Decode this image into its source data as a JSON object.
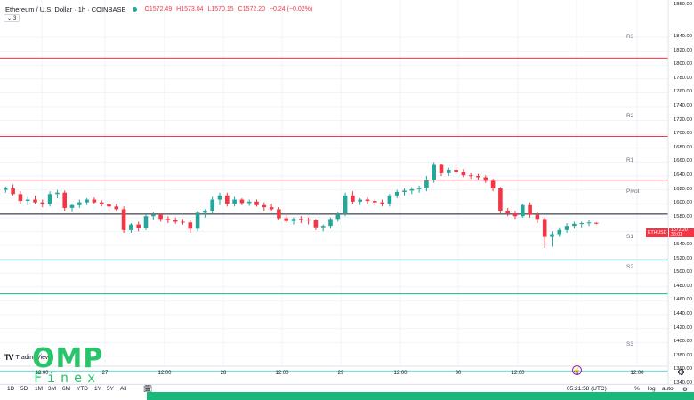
{
  "header": {
    "title": "Ethereum / U.S. Dollar · 1h · COINBASE",
    "ohlc": {
      "open": "O1572.49",
      "high": "H1573.04",
      "low": "L1570.15",
      "close": "C1572.20",
      "change": "−0.24 (−0.02%)"
    },
    "indicator_toggle_icon": "chevron-down-icon",
    "indicator_count": "3"
  },
  "levels": {
    "r3": {
      "label": "R3",
      "price": 1810
    },
    "r2": {
      "label": "R2",
      "price": 1697
    },
    "r1": {
      "label": "R1",
      "price": 1634
    },
    "pivot": {
      "label": "Pivot",
      "price": 1585
    },
    "s1": {
      "label": "S1",
      "price": 1519
    },
    "s2": {
      "label": "S2",
      "price": 1470
    },
    "s3": {
      "label": "S3",
      "price": 1358
    }
  },
  "price_axis": {
    "labels": [
      "1850.00",
      "1840.00",
      "1820.00",
      "1800.00",
      "1780.00",
      "1760.00",
      "1740.00",
      "1720.00",
      "1700.00",
      "1680.00",
      "1660.00",
      "1640.00",
      "1620.00",
      "1600.00",
      "1580.00",
      "1560.00",
      "1540.00",
      "1520.00",
      "1500.00",
      "1480.00",
      "1460.00",
      "1440.00",
      "1420.00",
      "1400.00",
      "1380.00",
      "1360.00",
      "1340.00"
    ],
    "last_price_tag": {
      "price": "1572.20",
      "countdown": "38:01"
    },
    "symbol_tag": "ETHUSD"
  },
  "time_axis": {
    "labels": [
      "12:00",
      "27",
      "12:00",
      "28",
      "12:00",
      "29",
      "12:00",
      "30",
      "12:00",
      "31",
      "12:00"
    ]
  },
  "branding": {
    "tradingview_mark": "TV",
    "tradingview_text": "TradingView",
    "omp_big": "OMP",
    "omp_small": "Finex"
  },
  "bottom_toolbar": {
    "ranges": [
      "1D",
      "5D",
      "1M",
      "3M",
      "6M",
      "YTD",
      "1Y",
      "5Y",
      "All"
    ],
    "calendar_icon": "calendar-icon",
    "clock": "05:21:58 (UTC)",
    "percent": "%",
    "log": "log",
    "auto": "auto",
    "settings_icon": "gear-icon"
  },
  "colors": {
    "up": "#26a69a",
    "down": "#f23645",
    "resistance": "#f23645",
    "support": "#22ab94",
    "pivot": "#131722",
    "grid": "#f0f3fa",
    "brand_green": "#29c46a"
  },
  "chart_data": {
    "type": "candlestick",
    "symbol": "ETHUSD",
    "interval": "1h",
    "ylim": [
      1340,
      1860
    ],
    "pivot_levels": {
      "R3": 1810,
      "R2": 1697,
      "R1": 1634,
      "Pivot": 1585,
      "S1": 1519,
      "S2": 1470,
      "S3": 1358
    },
    "candles": [
      {
        "o": 1620,
        "h": 1625,
        "l": 1616,
        "c": 1622
      },
      {
        "o": 1622,
        "h": 1628,
        "l": 1612,
        "c": 1614
      },
      {
        "o": 1614,
        "h": 1618,
        "l": 1600,
        "c": 1604
      },
      {
        "o": 1604,
        "h": 1610,
        "l": 1598,
        "c": 1606
      },
      {
        "o": 1606,
        "h": 1612,
        "l": 1600,
        "c": 1602
      },
      {
        "o": 1602,
        "h": 1606,
        "l": 1595,
        "c": 1600
      },
      {
        "o": 1600,
        "h": 1618,
        "l": 1596,
        "c": 1614
      },
      {
        "o": 1614,
        "h": 1620,
        "l": 1608,
        "c": 1616
      },
      {
        "o": 1616,
        "h": 1619,
        "l": 1590,
        "c": 1594
      },
      {
        "o": 1594,
        "h": 1600,
        "l": 1589,
        "c": 1598
      },
      {
        "o": 1598,
        "h": 1606,
        "l": 1594,
        "c": 1602
      },
      {
        "o": 1602,
        "h": 1608,
        "l": 1598,
        "c": 1606
      },
      {
        "o": 1606,
        "h": 1609,
        "l": 1600,
        "c": 1602
      },
      {
        "o": 1602,
        "h": 1605,
        "l": 1596,
        "c": 1599
      },
      {
        "o": 1599,
        "h": 1601,
        "l": 1590,
        "c": 1596
      },
      {
        "o": 1596,
        "h": 1600,
        "l": 1590,
        "c": 1592
      },
      {
        "o": 1592,
        "h": 1596,
        "l": 1558,
        "c": 1562
      },
      {
        "o": 1562,
        "h": 1572,
        "l": 1558,
        "c": 1570
      },
      {
        "o": 1570,
        "h": 1574,
        "l": 1560,
        "c": 1565
      },
      {
        "o": 1565,
        "h": 1584,
        "l": 1562,
        "c": 1582
      },
      {
        "o": 1582,
        "h": 1588,
        "l": 1576,
        "c": 1584
      },
      {
        "o": 1584,
        "h": 1586,
        "l": 1574,
        "c": 1578
      },
      {
        "o": 1578,
        "h": 1582,
        "l": 1572,
        "c": 1576
      },
      {
        "o": 1576,
        "h": 1580,
        "l": 1571,
        "c": 1574
      },
      {
        "o": 1574,
        "h": 1578,
        "l": 1570,
        "c": 1573
      },
      {
        "o": 1573,
        "h": 1576,
        "l": 1558,
        "c": 1564
      },
      {
        "o": 1564,
        "h": 1590,
        "l": 1560,
        "c": 1587
      },
      {
        "o": 1587,
        "h": 1592,
        "l": 1580,
        "c": 1590
      },
      {
        "o": 1590,
        "h": 1610,
        "l": 1586,
        "c": 1606
      },
      {
        "o": 1606,
        "h": 1616,
        "l": 1598,
        "c": 1612
      },
      {
        "o": 1612,
        "h": 1616,
        "l": 1596,
        "c": 1600
      },
      {
        "o": 1600,
        "h": 1610,
        "l": 1596,
        "c": 1606
      },
      {
        "o": 1606,
        "h": 1608,
        "l": 1598,
        "c": 1601
      },
      {
        "o": 1601,
        "h": 1606,
        "l": 1597,
        "c": 1603
      },
      {
        "o": 1603,
        "h": 1606,
        "l": 1596,
        "c": 1598
      },
      {
        "o": 1598,
        "h": 1602,
        "l": 1590,
        "c": 1595
      },
      {
        "o": 1595,
        "h": 1600,
        "l": 1590,
        "c": 1592
      },
      {
        "o": 1592,
        "h": 1595,
        "l": 1576,
        "c": 1579
      },
      {
        "o": 1579,
        "h": 1584,
        "l": 1572,
        "c": 1575
      },
      {
        "o": 1575,
        "h": 1580,
        "l": 1570,
        "c": 1578
      },
      {
        "o": 1578,
        "h": 1582,
        "l": 1572,
        "c": 1577
      },
      {
        "o": 1577,
        "h": 1580,
        "l": 1570,
        "c": 1576
      },
      {
        "o": 1576,
        "h": 1578,
        "l": 1562,
        "c": 1566
      },
      {
        "o": 1566,
        "h": 1570,
        "l": 1560,
        "c": 1568
      },
      {
        "o": 1568,
        "h": 1580,
        "l": 1564,
        "c": 1578
      },
      {
        "o": 1578,
        "h": 1588,
        "l": 1574,
        "c": 1585
      },
      {
        "o": 1585,
        "h": 1616,
        "l": 1582,
        "c": 1612
      },
      {
        "o": 1612,
        "h": 1618,
        "l": 1600,
        "c": 1603
      },
      {
        "o": 1603,
        "h": 1608,
        "l": 1598,
        "c": 1606
      },
      {
        "o": 1606,
        "h": 1609,
        "l": 1600,
        "c": 1604
      },
      {
        "o": 1604,
        "h": 1606,
        "l": 1598,
        "c": 1602
      },
      {
        "o": 1602,
        "h": 1606,
        "l": 1596,
        "c": 1600
      },
      {
        "o": 1600,
        "h": 1614,
        "l": 1596,
        "c": 1612
      },
      {
        "o": 1612,
        "h": 1620,
        "l": 1608,
        "c": 1617
      },
      {
        "o": 1617,
        "h": 1622,
        "l": 1612,
        "c": 1619
      },
      {
        "o": 1619,
        "h": 1624,
        "l": 1614,
        "c": 1621
      },
      {
        "o": 1621,
        "h": 1626,
        "l": 1616,
        "c": 1623
      },
      {
        "o": 1623,
        "h": 1640,
        "l": 1618,
        "c": 1634
      },
      {
        "o": 1634,
        "h": 1660,
        "l": 1630,
        "c": 1656
      },
      {
        "o": 1656,
        "h": 1658,
        "l": 1640,
        "c": 1644
      },
      {
        "o": 1644,
        "h": 1652,
        "l": 1640,
        "c": 1649
      },
      {
        "o": 1649,
        "h": 1652,
        "l": 1643,
        "c": 1646
      },
      {
        "o": 1646,
        "h": 1650,
        "l": 1638,
        "c": 1641
      },
      {
        "o": 1641,
        "h": 1644,
        "l": 1636,
        "c": 1640
      },
      {
        "o": 1640,
        "h": 1643,
        "l": 1634,
        "c": 1638
      },
      {
        "o": 1638,
        "h": 1641,
        "l": 1630,
        "c": 1633
      },
      {
        "o": 1633,
        "h": 1636,
        "l": 1618,
        "c": 1622
      },
      {
        "o": 1622,
        "h": 1624,
        "l": 1586,
        "c": 1590
      },
      {
        "o": 1590,
        "h": 1594,
        "l": 1582,
        "c": 1586
      },
      {
        "o": 1586,
        "h": 1590,
        "l": 1578,
        "c": 1582
      },
      {
        "o": 1582,
        "h": 1600,
        "l": 1580,
        "c": 1598
      },
      {
        "o": 1598,
        "h": 1602,
        "l": 1580,
        "c": 1584
      },
      {
        "o": 1584,
        "h": 1588,
        "l": 1572,
        "c": 1578
      },
      {
        "o": 1578,
        "h": 1580,
        "l": 1536,
        "c": 1552
      },
      {
        "o": 1552,
        "h": 1560,
        "l": 1538,
        "c": 1556
      },
      {
        "o": 1556,
        "h": 1566,
        "l": 1552,
        "c": 1562
      },
      {
        "o": 1562,
        "h": 1572,
        "l": 1558,
        "c": 1568
      },
      {
        "o": 1568,
        "h": 1574,
        "l": 1564,
        "c": 1571
      },
      {
        "o": 1571,
        "h": 1574,
        "l": 1566,
        "c": 1572
      },
      {
        "o": 1572,
        "h": 1576,
        "l": 1568,
        "c": 1573
      },
      {
        "o": 1572.49,
        "h": 1573.04,
        "l": 1570.15,
        "c": 1572.2
      }
    ]
  }
}
